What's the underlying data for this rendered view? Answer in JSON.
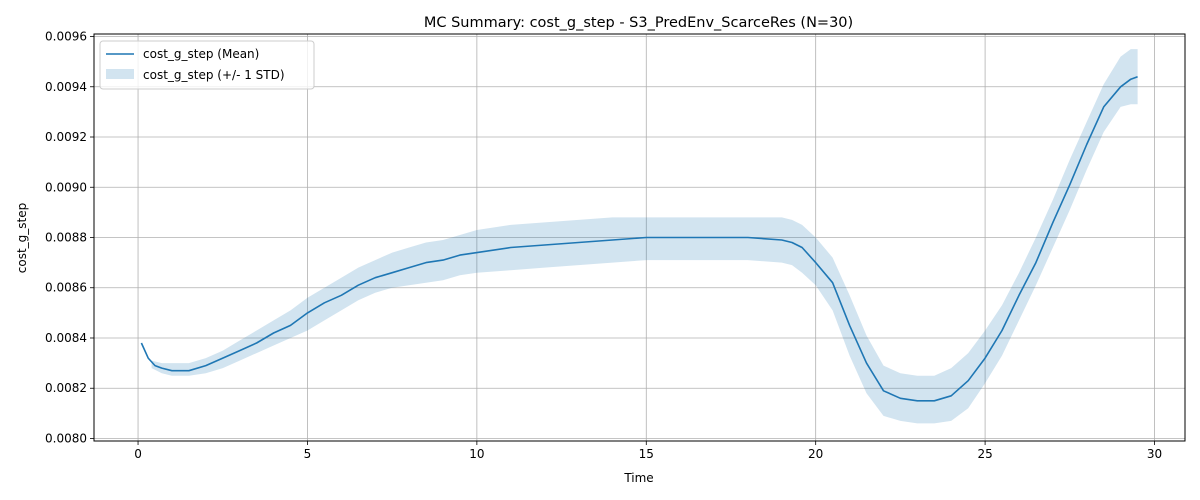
{
  "chart_data": {
    "type": "line",
    "title": "MC Summary: cost_g_step - S3_PredEnv_ScarceRes (N=30)",
    "xlabel": "Time",
    "ylabel": "cost_g_step",
    "xlim": [
      -1.3,
      30.9
    ],
    "ylim": [
      0.00799,
      0.00961
    ],
    "xticks": [
      "0",
      "5",
      "10",
      "15",
      "20",
      "25",
      "30"
    ],
    "xtick_values": [
      0,
      5,
      10,
      15,
      20,
      25,
      30
    ],
    "yticks": [
      "0.0080",
      "0.0082",
      "0.0084",
      "0.0086",
      "0.0088",
      "0.0090",
      "0.0092",
      "0.0094",
      "0.0096"
    ],
    "ytick_values": [
      0.008,
      0.0082,
      0.0084,
      0.0086,
      0.0088,
      0.009,
      0.0092,
      0.0094,
      0.0096
    ],
    "grid": true,
    "legend_position": "top-left",
    "colors": {
      "line": "#1f77b4",
      "band": "#1f77b4"
    },
    "series": [
      {
        "name": "cost_g_step (Mean)",
        "kind": "line",
        "x": [
          0.1,
          0.3,
          0.5,
          0.7,
          1.0,
          1.5,
          2.0,
          2.5,
          3.0,
          3.5,
          4.0,
          4.5,
          5.0,
          5.5,
          6.0,
          6.5,
          7.0,
          7.5,
          8.0,
          8.5,
          9.0,
          9.5,
          10.0,
          11.0,
          12.0,
          13.0,
          14.0,
          15.0,
          16.0,
          17.0,
          18.0,
          19.0,
          19.3,
          19.6,
          20.0,
          20.5,
          21.0,
          21.5,
          22.0,
          22.5,
          23.0,
          23.5,
          24.0,
          24.5,
          25.0,
          25.5,
          26.0,
          26.5,
          27.0,
          27.5,
          28.0,
          28.5,
          29.0,
          29.3,
          29.5
        ],
        "values": [
          0.00838,
          0.00832,
          0.00829,
          0.00828,
          0.00827,
          0.00827,
          0.00829,
          0.00832,
          0.00835,
          0.00838,
          0.00842,
          0.00845,
          0.0085,
          0.00854,
          0.00857,
          0.00861,
          0.00864,
          0.00866,
          0.00868,
          0.0087,
          0.00871,
          0.00873,
          0.00874,
          0.00876,
          0.00877,
          0.00878,
          0.00879,
          0.0088,
          0.0088,
          0.0088,
          0.0088,
          0.00879,
          0.00878,
          0.00876,
          0.0087,
          0.00862,
          0.00845,
          0.0083,
          0.00819,
          0.00816,
          0.00815,
          0.00815,
          0.00817,
          0.00823,
          0.00832,
          0.00843,
          0.00857,
          0.0087,
          0.00886,
          0.00901,
          0.00917,
          0.00932,
          0.0094,
          0.00943,
          0.00944
        ]
      },
      {
        "name": "cost_g_step (+/- 1 STD)",
        "kind": "band",
        "x": [
          0.4,
          0.7,
          1.0,
          1.5,
          2.0,
          2.5,
          3.0,
          3.5,
          4.0,
          4.5,
          5.0,
          5.5,
          6.0,
          6.5,
          7.0,
          7.5,
          8.0,
          8.5,
          9.0,
          9.5,
          10.0,
          11.0,
          12.0,
          13.0,
          14.0,
          15.0,
          16.0,
          17.0,
          18.0,
          19.0,
          19.3,
          19.6,
          20.0,
          20.5,
          21.0,
          21.5,
          22.0,
          22.5,
          23.0,
          23.5,
          24.0,
          24.5,
          25.0,
          25.5,
          26.0,
          26.5,
          27.0,
          27.5,
          28.0,
          28.5,
          29.0,
          29.3,
          29.5
        ],
        "upper": [
          0.00831,
          0.0083,
          0.0083,
          0.0083,
          0.00832,
          0.00835,
          0.00839,
          0.00843,
          0.00847,
          0.00851,
          0.00856,
          0.0086,
          0.00864,
          0.00868,
          0.00871,
          0.00874,
          0.00876,
          0.00878,
          0.00879,
          0.00881,
          0.00883,
          0.00885,
          0.00886,
          0.00887,
          0.00888,
          0.00888,
          0.00888,
          0.00888,
          0.00888,
          0.00888,
          0.00887,
          0.00885,
          0.0088,
          0.00872,
          0.00857,
          0.00841,
          0.00829,
          0.00826,
          0.00825,
          0.00825,
          0.00828,
          0.00834,
          0.00843,
          0.00853,
          0.00866,
          0.0088,
          0.00895,
          0.00911,
          0.00926,
          0.00941,
          0.00952,
          0.00955,
          0.00955
        ],
        "lower": [
          0.00828,
          0.00826,
          0.00825,
          0.00825,
          0.00826,
          0.00828,
          0.00831,
          0.00834,
          0.00837,
          0.0084,
          0.00843,
          0.00847,
          0.00851,
          0.00855,
          0.00858,
          0.0086,
          0.00861,
          0.00862,
          0.00863,
          0.00865,
          0.00866,
          0.00867,
          0.00868,
          0.00869,
          0.0087,
          0.00871,
          0.00871,
          0.00871,
          0.00871,
          0.0087,
          0.00869,
          0.00866,
          0.00861,
          0.00851,
          0.00833,
          0.00818,
          0.00809,
          0.00807,
          0.00806,
          0.00806,
          0.00807,
          0.00812,
          0.00822,
          0.00833,
          0.00847,
          0.00861,
          0.00876,
          0.00891,
          0.00907,
          0.00922,
          0.00932,
          0.00933,
          0.00933
        ]
      }
    ]
  }
}
